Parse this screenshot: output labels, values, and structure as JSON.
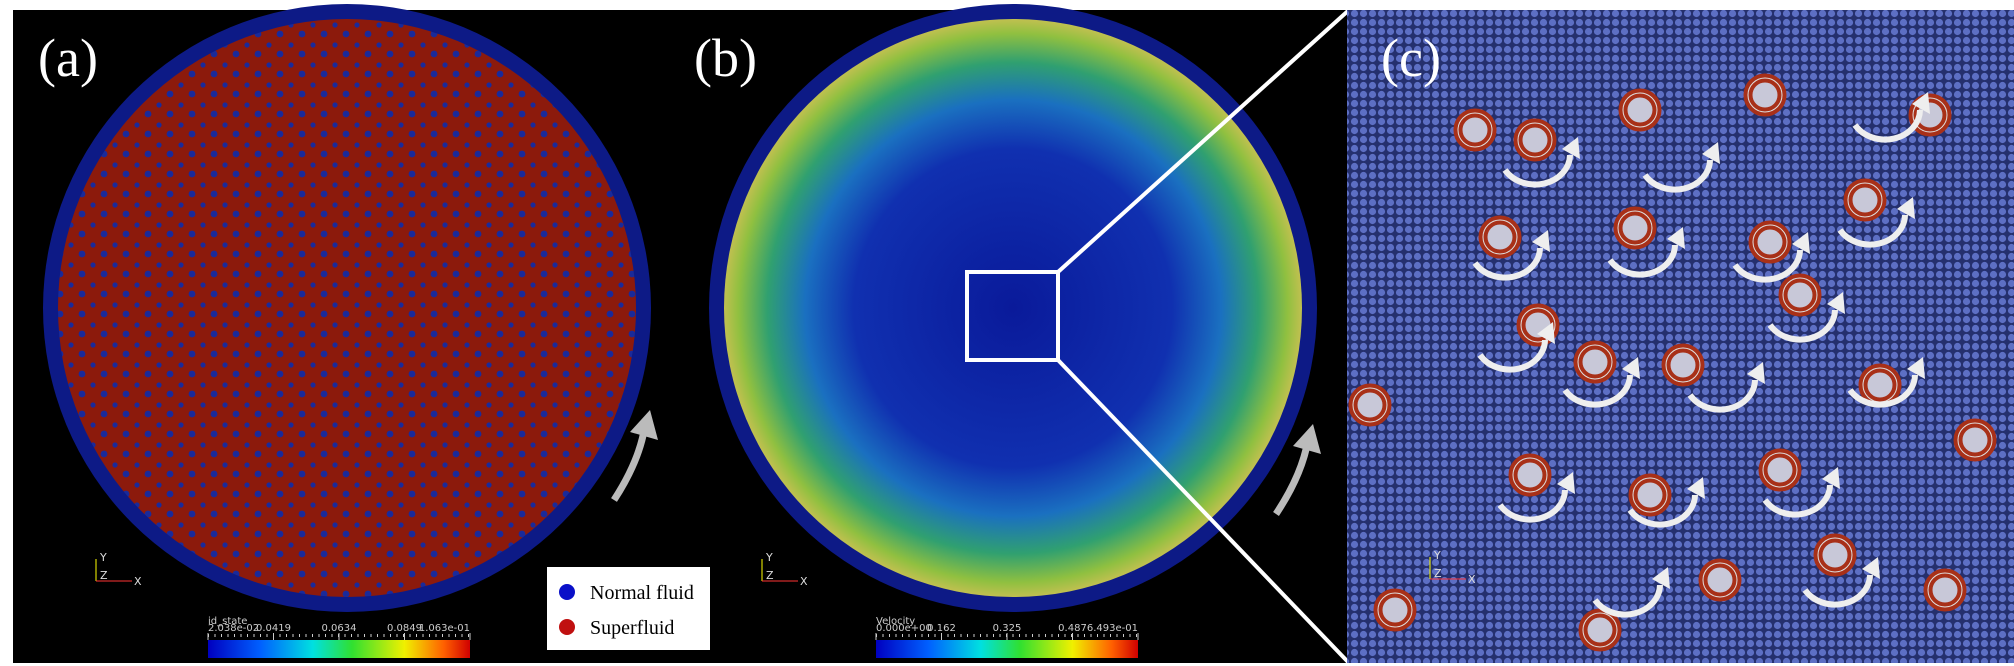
{
  "panels": [
    {
      "label": "(a)"
    },
    {
      "label": "(b)"
    },
    {
      "label": "(c)"
    }
  ],
  "legend": [
    {
      "label": "Normal fluid"
    },
    {
      "label": "Superfluid"
    }
  ],
  "colorbars": [
    {
      "title": "id_state",
      "ticks": [
        "2.038e-02",
        "0.0419",
        "0.0634",
        "0.0849",
        "1.063e-01"
      ]
    },
    {
      "title": "Velocity",
      "ticks": [
        "0.000e+00",
        "0.162",
        "0.325",
        "0.487",
        "6.493e-01"
      ]
    }
  ],
  "triads": [
    {
      "y": "Y",
      "z": "Z",
      "x": "X"
    },
    {
      "y": "Y",
      "z": "Z",
      "x": "X"
    },
    {
      "y": "Y",
      "z": "Z",
      "x": "X"
    }
  ]
}
